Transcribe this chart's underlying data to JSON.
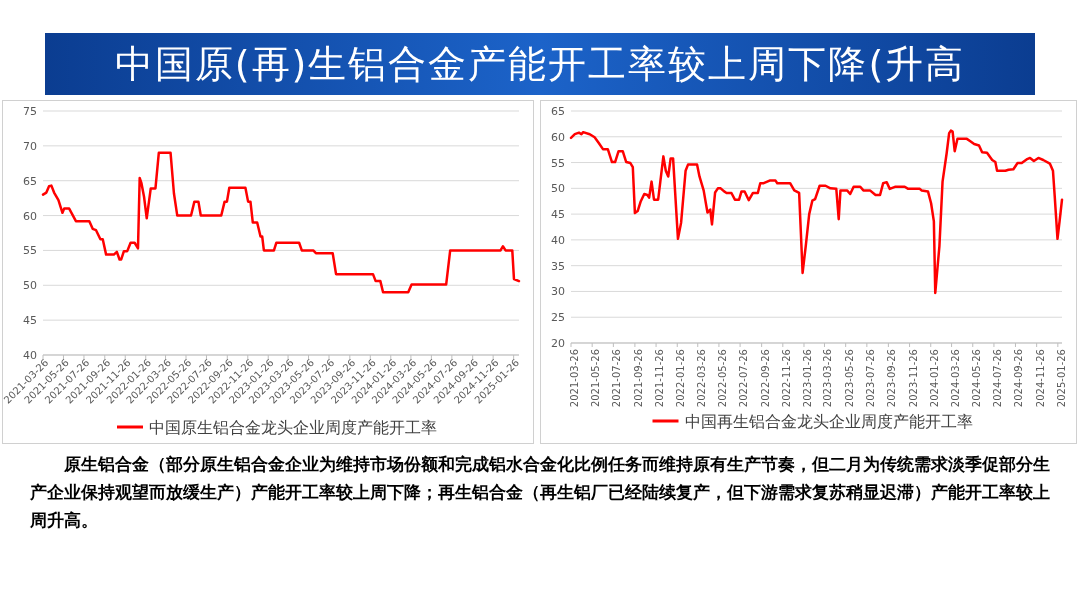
{
  "chart_data": [
    {
      "type": "line",
      "title": "中国原(再)生铝合金产能开工率较上周下降(升高",
      "annotations": [
        "原生铝合金（部分原生铝合金企业为维持市场份额和完成铝水合金化比例任务而维持原有生产节奏，但二月为传统需求淡季促部分生产企业保持观望而放缓生产）产能开工率较上周下降；再生铝合金（再生铝厂已经陆续复产，但下游需求复苏稍显迟滞）产能开工率较上周升高。"
      ],
      "legend": "bottom",
      "grid": "y",
      "line_style": "solid",
      "marker": "none",
      "xlim": [
        "2021-03-26",
        "2025-02-11"
      ],
      "ylim": [
        40,
        75
      ],
      "yticks": [
        40,
        45,
        50,
        55,
        60,
        65,
        70,
        75
      ],
      "xticks": [
        "2021-03-26",
        "2021-05-26",
        "2021-07-26",
        "2021-09-26",
        "2021-11-26",
        "2022-01-26",
        "2022-03-26",
        "2022-05-26",
        "2022-07-26",
        "2022-09-26",
        "2022-11-26",
        "2023-01-26",
        "2023-03-26",
        "2023-05-26",
        "2023-07-26",
        "2023-09-26",
        "2023-11-26",
        "2024-01-26",
        "2024-03-26",
        "2024-05-26",
        "2024-07-26",
        "2024-09-26",
        "2024-11-26",
        "2025-01-26"
      ],
      "series": [
        {
          "name": "中国原生铝合金龙头企业周度产能开工率",
          "color": "#ff0000",
          "x": [
            "2021-03-26",
            "2021-04-05",
            "2021-04-13",
            "2021-04-20",
            "2021-04-28",
            "2021-05-11",
            "2021-05-23",
            "2021-05-28",
            "2021-06-12",
            "2021-07-02",
            "2021-08-11",
            "2021-08-21",
            "2021-08-31",
            "2021-09-13",
            "2021-09-20",
            "2021-09-30",
            "2021-10-23",
            "2021-11-01",
            "2021-11-09",
            "2021-11-14",
            "2021-11-22",
            "2021-12-02",
            "2021-12-12",
            "2021-12-24",
            "2022-01-03",
            "2022-01-08",
            "2022-01-13",
            "2022-01-21",
            "2022-01-29",
            "2022-02-10",
            "2022-02-24",
            "2022-03-06",
            "2022-04-10",
            "2022-04-20",
            "2022-04-30",
            "2022-06-10",
            "2022-06-20",
            "2022-07-02",
            "2022-07-09",
            "2022-09-08",
            "2022-09-18",
            "2022-09-25",
            "2022-10-02",
            "2022-11-19",
            "2022-11-27",
            "2022-12-04",
            "2022-12-11",
            "2022-12-24",
            "2023-01-03",
            "2023-01-08",
            "2023-01-13",
            "2023-02-12",
            "2023-02-19",
            "2023-04-28",
            "2023-05-06",
            "2023-06-09",
            "2023-06-17",
            "2023-08-06",
            "2023-08-16",
            "2023-12-04",
            "2023-12-12",
            "2023-12-26",
            "2024-01-03",
            "2024-03-18",
            "2024-03-28",
            "2024-07-09",
            "2024-07-21",
            "2024-12-18",
            "2024-12-25",
            "2025-01-02",
            "2025-01-22",
            "2025-01-27",
            "2025-02-11"
          ],
          "values": [
            63.0,
            63.3,
            64.2,
            64.3,
            63.3,
            62.2,
            60.4,
            61.0,
            61.0,
            59.2,
            59.2,
            58.1,
            57.9,
            56.6,
            56.6,
            54.4,
            54.4,
            54.8,
            53.7,
            53.7,
            54.9,
            54.9,
            56.1,
            56.1,
            55.3,
            65.4,
            64.7,
            62.7,
            59.6,
            63.9,
            63.9,
            69.0,
            69.0,
            63.2,
            60.0,
            60.0,
            62.0,
            62.0,
            60.0,
            60.0,
            62.0,
            62.0,
            64.0,
            64.0,
            62.0,
            62.0,
            59.0,
            59.0,
            57.0,
            57.0,
            55.0,
            55.0,
            56.1,
            56.1,
            55.0,
            55.0,
            54.6,
            54.6,
            51.6,
            51.6,
            50.6,
            50.6,
            49.0,
            49.0,
            50.1,
            50.1,
            55.0,
            55.0,
            55.6,
            55.0,
            55.0,
            50.9,
            50.6
          ]
        }
      ]
    },
    {
      "type": "line",
      "legend": "bottom",
      "grid": "y",
      "line_style": "solid",
      "marker": "none",
      "xlim": [
        "2021-03-26",
        "2025-02-07"
      ],
      "ylim": [
        20,
        65
      ],
      "yticks": [
        20,
        25,
        30,
        35,
        40,
        45,
        50,
        55,
        60,
        65
      ],
      "xticks": [
        "2021-03-26",
        "2021-05-26",
        "2021-07-26",
        "2021-09-26",
        "2021-11-26",
        "2022-01-26",
        "2022-03-26",
        "2022-05-26",
        "2022-07-26",
        "2022-09-26",
        "2022-11-26",
        "2023-01-26",
        "2023-03-26",
        "2023-05-26",
        "2023-07-26",
        "2023-09-26",
        "2023-11-26",
        "2024-01-26",
        "2024-03-26",
        "2024-05-26",
        "2024-07-26",
        "2024-09-26",
        "2024-11-26",
        "2025-01-26"
      ],
      "series": [
        {
          "name": "中国再生铝合金龙头企业周度产能开工率",
          "color": "#ff0000",
          "x": [
            "2021-03-26",
            "2021-04-06",
            "2021-04-18",
            "2021-04-25",
            "2021-04-30",
            "2021-05-19",
            "2021-06-02",
            "2021-06-14",
            "2021-06-26",
            "2021-07-10",
            "2021-07-22",
            "2021-07-31",
            "2021-08-10",
            "2021-08-22",
            "2021-09-01",
            "2021-09-13",
            "2021-09-20",
            "2021-09-26",
            "2021-10-04",
            "2021-10-13",
            "2021-10-23",
            "2021-11-01",
            "2021-11-06",
            "2021-11-13",
            "2021-11-20",
            "2021-12-02",
            "2021-12-17",
            "2021-12-24",
            "2021-12-31",
            "2022-01-07",
            "2022-01-14",
            "2022-01-28",
            "2022-02-06",
            "2022-02-19",
            "2022-02-26",
            "2022-03-24",
            "2022-03-31",
            "2022-04-12",
            "2022-04-23",
            "2022-05-01",
            "2022-05-06",
            "2022-05-15",
            "2022-05-23",
            "2022-05-31",
            "2022-06-10",
            "2022-06-17",
            "2022-07-01",
            "2022-07-11",
            "2022-07-23",
            "2022-07-30",
            "2022-08-08",
            "2022-08-20",
            "2022-09-01",
            "2022-09-15",
            "2022-09-22",
            "2022-10-02",
            "2022-10-19",
            "2022-11-05",
            "2022-11-10",
            "2022-12-17",
            "2022-12-29",
            "2023-01-12",
            "2023-01-22",
            "2023-01-31",
            "2023-02-10",
            "2023-02-19",
            "2023-02-27",
            "2023-03-12",
            "2023-03-29",
            "2023-04-12",
            "2023-04-29",
            "2023-05-06",
            "2023-05-11",
            "2023-05-30",
            "2023-06-08",
            "2023-06-18",
            "2023-07-07",
            "2023-07-16",
            "2023-08-04",
            "2023-08-20",
            "2023-09-02",
            "2023-09-11",
            "2023-09-21",
            "2023-09-30",
            "2023-10-15",
            "2023-11-12",
            "2023-11-22",
            "2023-12-25",
            "2023-12-31",
            "2024-01-18",
            "2024-01-27",
            "2024-02-04",
            "2024-02-08",
            "2024-02-20",
            "2024-02-29",
            "2024-03-12",
            "2024-03-19",
            "2024-03-24",
            "2024-03-29",
            "2024-04-04",
            "2024-04-12",
            "2024-05-09",
            "2024-05-20",
            "2024-05-30",
            "2024-06-13",
            "2024-06-22",
            "2024-07-06",
            "2024-07-21",
            "2024-07-30",
            "2024-08-04",
            "2024-08-28",
            "2024-09-06",
            "2024-09-20",
            "2024-10-02",
            "2024-10-14",
            "2024-10-28",
            "2024-11-07",
            "2024-11-18",
            "2024-12-01",
            "2024-12-15",
            "2025-01-03",
            "2025-01-12",
            "2025-01-17",
            "2025-01-25",
            "2025-01-31",
            "2025-02-07"
          ],
          "values": [
            59.8,
            60.5,
            60.8,
            60.5,
            60.9,
            60.5,
            59.9,
            58.8,
            57.6,
            57.6,
            55.1,
            55.1,
            57.2,
            57.2,
            55.1,
            54.9,
            54.1,
            45.2,
            45.6,
            47.5,
            48.9,
            48.7,
            48.2,
            51.3,
            47.8,
            47.8,
            56.2,
            53.4,
            52.3,
            55.8,
            55.8,
            40.2,
            43.3,
            53.4,
            54.6,
            54.6,
            52.3,
            49.6,
            45.3,
            45.9,
            43.0,
            49.2,
            50.0,
            50.0,
            49.4,
            49.1,
            49.1,
            47.8,
            47.8,
            49.4,
            49.4,
            47.7,
            49.1,
            49.1,
            51.0,
            51.0,
            51.5,
            51.5,
            51.0,
            51.0,
            49.6,
            49.1,
            33.6,
            38.8,
            45.0,
            47.6,
            47.9,
            50.5,
            50.5,
            50.0,
            49.9,
            44.0,
            49.6,
            49.6,
            48.9,
            50.3,
            50.3,
            49.6,
            49.6,
            48.7,
            48.7,
            51.0,
            51.2,
            49.9,
            50.3,
            50.3,
            49.9,
            49.9,
            49.6,
            49.4,
            47.1,
            43.6,
            29.7,
            38.8,
            51.3,
            56.9,
            60.7,
            61.2,
            61.0,
            57.2,
            59.6,
            59.6,
            59.1,
            58.6,
            58.3,
            57.0,
            56.9,
            55.5,
            55.1,
            53.4,
            53.4,
            53.6,
            53.7,
            54.9,
            54.9,
            55.6,
            55.9,
            55.3,
            55.9,
            55.5,
            54.8,
            53.4,
            48.5,
            40.2,
            43.6,
            47.8
          ]
        }
      ]
    }
  ]
}
